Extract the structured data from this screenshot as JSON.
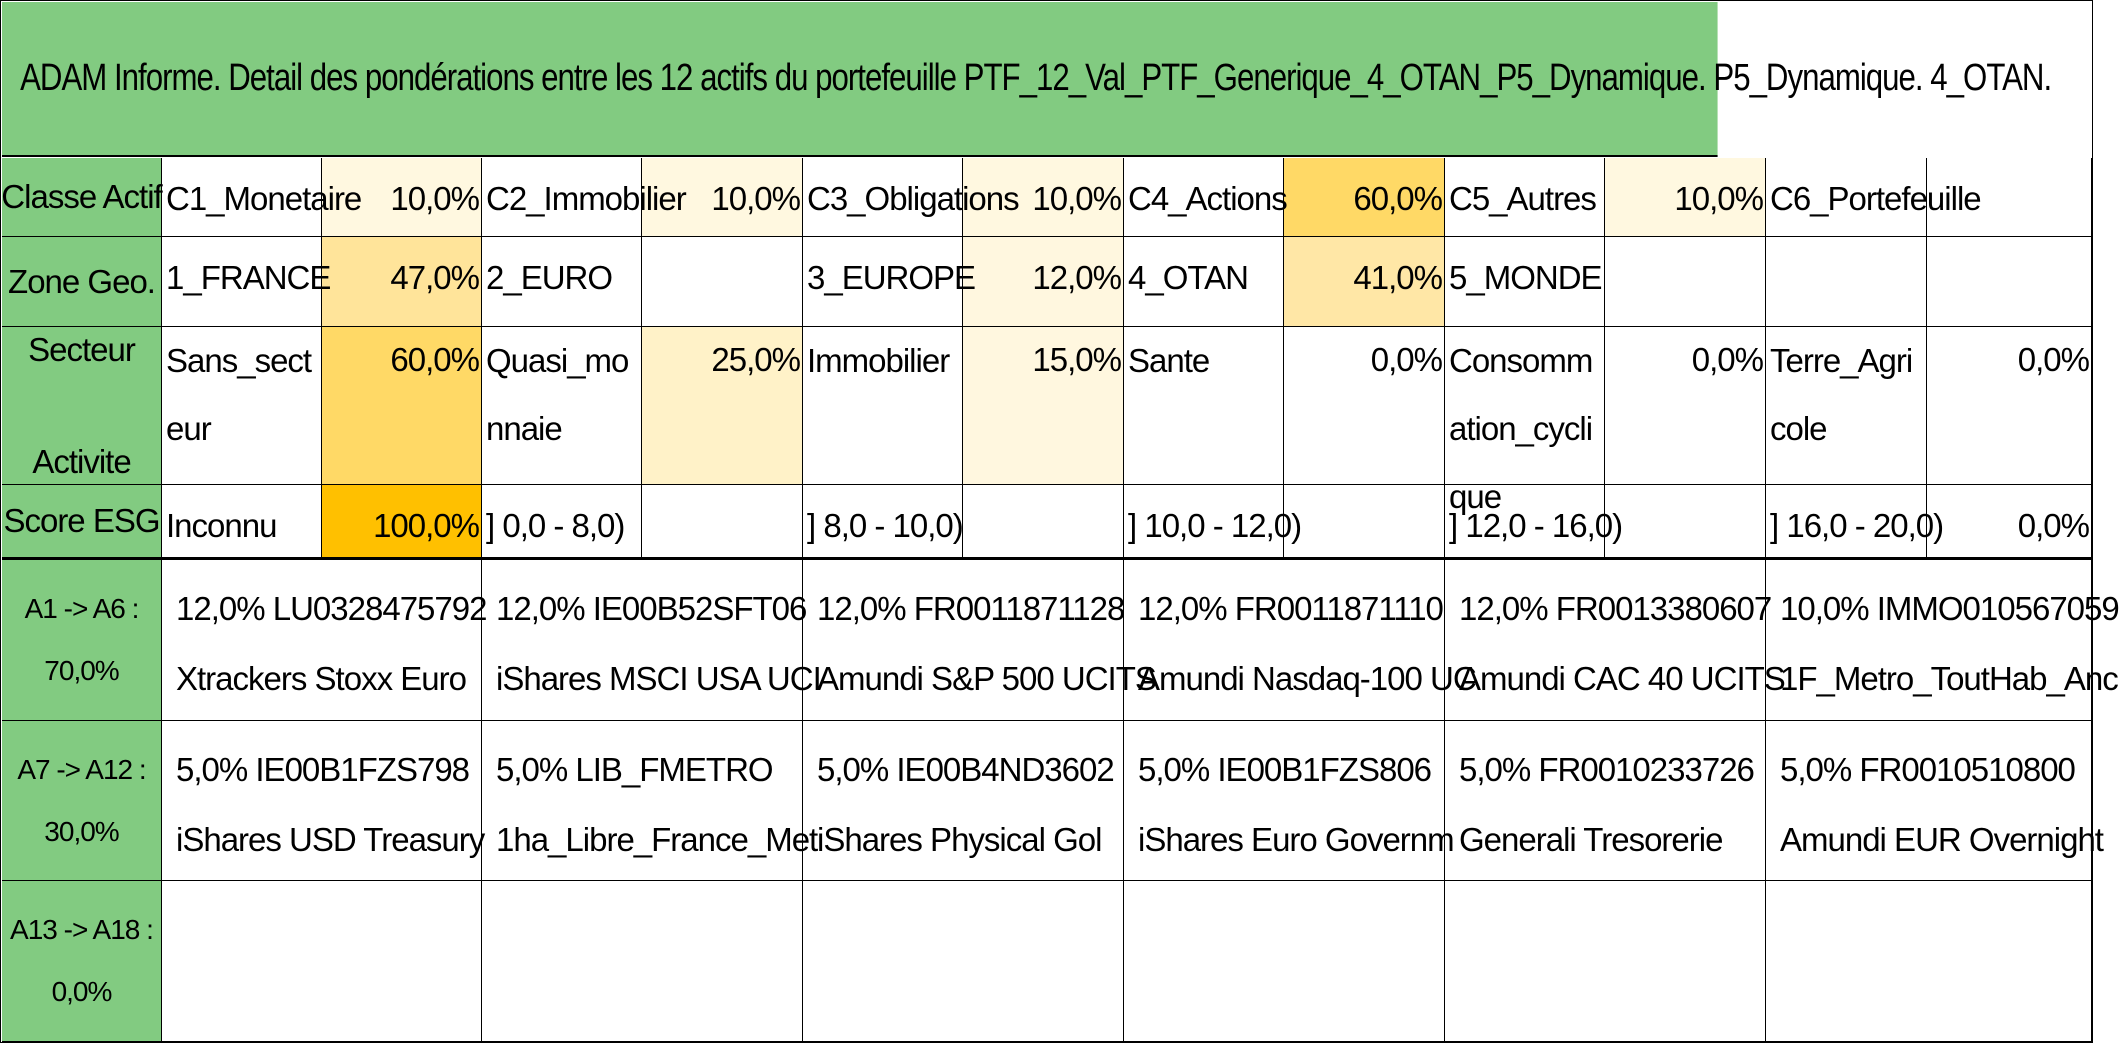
{
  "title": "ADAM Informe. Detail des pondérations entre les 12 actifs du portefeuille PTF_12_Val_PTF_Generique_4_OTAN_P5_Dynamique. P5_Dynamique. 4_OTAN.",
  "row_headers": {
    "classe": "Classe Actif",
    "zone": "Zone Geo.",
    "secteur_line1": "Secteur",
    "secteur_line2": "Activite",
    "esg": "Score ESG",
    "a1_line1": "A1 -> A6 :",
    "a1_line2": "70,0%",
    "a7_line1": "A7 -> A12 :",
    "a7_line2": "30,0%",
    "a13_line1": "A13 -> A18 :",
    "a13_line2": "0,0%"
  },
  "classe": [
    {
      "label": "C1_Monetaire",
      "value": "10,0%",
      "color": "#fff8e0"
    },
    {
      "label": "C2_Immobilier",
      "value": "10,0%",
      "color": "#fff8e0"
    },
    {
      "label": "C3_Obligations",
      "value": "10,0%",
      "color": "#fff8e0"
    },
    {
      "label": "C4_Actions",
      "value": "60,0%",
      "color": "#ffd966"
    },
    {
      "label": "C5_Autres",
      "value": "10,0%",
      "color": "#fff8e0"
    },
    {
      "label": "C6_Portefeuille",
      "value": "",
      "color": "#ffffff"
    }
  ],
  "zone": [
    {
      "label": "1_FRANCE",
      "value": "47,0%",
      "color": "#ffe49a"
    },
    {
      "label": "2_EURO",
      "value": "",
      "color": "#ffffff"
    },
    {
      "label": "3_EUROPE",
      "value": "12,0%",
      "color": "#fff7df"
    },
    {
      "label": "4_OTAN",
      "value": "41,0%",
      "color": "#ffe7a6"
    },
    {
      "label": "5_MONDE",
      "value": "",
      "color": "#ffffff"
    },
    {
      "label": "",
      "value": "",
      "color": "#ffffff"
    }
  ],
  "secteur": [
    {
      "label": "Sans_secteur",
      "value": "60,0%",
      "color": "#ffd966"
    },
    {
      "label": "Quasi_monnaie",
      "value": "25,0%",
      "color": "#fff2c8"
    },
    {
      "label": "Immobilier",
      "value": "15,0%",
      "color": "#fff7df"
    },
    {
      "label": "Sante",
      "value": "0,0%",
      "color": "#ffffff"
    },
    {
      "label": "Consommation_cyclique",
      "value": "0,0%",
      "color": "#ffffff"
    },
    {
      "label": "Terre_Agricole",
      "value": "0,0%",
      "color": "#ffffff"
    }
  ],
  "esg": [
    {
      "label": "Inconnu",
      "value": "100,0%",
      "color": "#ffc000"
    },
    {
      "label": "] 0,0 - 8,0)",
      "value": "",
      "color": "#ffffff"
    },
    {
      "label": "] 8,0 - 10,0)",
      "value": "",
      "color": "#ffffff"
    },
    {
      "label": "] 10,0 - 12,0)",
      "value": "",
      "color": "#ffffff"
    },
    {
      "label": "] 12,0 - 16,0)",
      "value": "",
      "color": "#ffffff"
    },
    {
      "label": "] 16,0 - 20,0)",
      "value": "0,0%",
      "color": "#ffffff"
    }
  ],
  "assets_a1": [
    {
      "line1": "12,0% LU0328475792",
      "line2": "Xtrackers Stoxx Euro"
    },
    {
      "line1": "12,0% IE00B52SFT06",
      "line2": "iShares MSCI USA UCI"
    },
    {
      "line1": "12,0% FR0011871128",
      "line2": "Amundi S&P 500 UCITS"
    },
    {
      "line1": "12,0% FR0011871110",
      "line2": "Amundi Nasdaq-100 UC"
    },
    {
      "line1": "12,0% FR0013380607",
      "line2": "Amundi CAC 40 UCITS"
    },
    {
      "line1": "10,0% IMMO010567059",
      "line2": "1F_Metro_ToutHab_Anc"
    }
  ],
  "assets_a7": [
    {
      "line1": "5,0% IE00B1FZS798",
      "line2": "iShares USD Treasury"
    },
    {
      "line1": "5,0% LIB_FMETRO",
      "line2": "1ha_Libre_France_Met"
    },
    {
      "line1": "5,0% IE00B4ND3602",
      "line2": "iShares Physical Gol"
    },
    {
      "line1": "5,0% IE00B1FZS806",
      "line2": "iShares Euro Governm"
    },
    {
      "line1": "5,0% FR0010233726",
      "line2": "Generali Tresorerie"
    },
    {
      "line1": "5,0% FR0010510800",
      "line2": "Amundi EUR Overnight"
    }
  ]
}
